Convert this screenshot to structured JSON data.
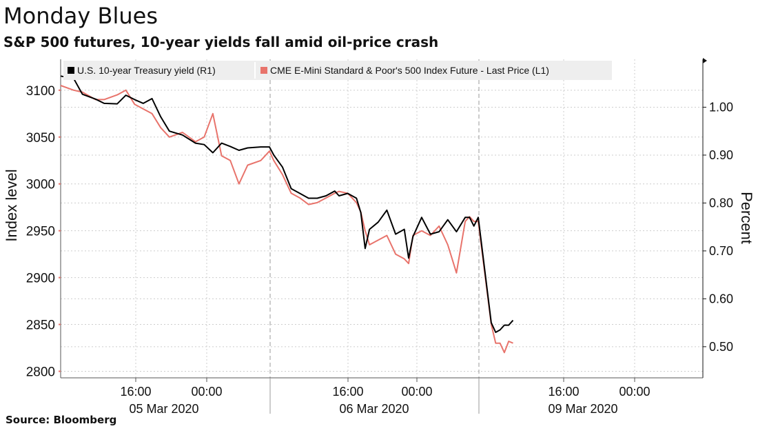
{
  "header": {
    "title": "Monday Blues",
    "subtitle": "S&P 500 futures, 10-year yields fall amid oil-price crash"
  },
  "footer": {
    "source": "Source: Bloomberg"
  },
  "colors": {
    "yield_line": "#000000",
    "spx_line": "#e8736b",
    "grid": "#cccccc",
    "legend_bg": "#eeeeee"
  },
  "chart_data": {
    "type": "line",
    "ylabel_left": "Index level",
    "ylabel_right": "Percent",
    "left_axis": {
      "min": 2793,
      "max": 3133,
      "ticks": [
        3100,
        3050,
        3000,
        2950,
        2900,
        2850,
        2800
      ]
    },
    "right_axis": {
      "min": 0.435,
      "max": 1.1,
      "ticks": [
        "1.00",
        "0.90",
        "0.80",
        "0.70",
        "0.60",
        "0.50"
      ]
    },
    "x_axis": {
      "time_ticks": [
        "16:00",
        "00:00",
        "16:00",
        "00:00",
        "16:00",
        "00:00"
      ],
      "date_labels": [
        "05 Mar 2020",
        "06 Mar 2020",
        "09 Mar 2020"
      ]
    },
    "grid": true,
    "legend_position": "top-left",
    "series": [
      {
        "name": "U.S. 10-year Treasury yield (R1)",
        "axis": "right",
        "points": [
          [
            "05 Mar 2020 08:00",
            1.065
          ],
          [
            "05 Mar 2020 09:30",
            1.06
          ],
          [
            "05 Mar 2020 10:30",
            1.027
          ],
          [
            "05 Mar 2020 12:00",
            1.017
          ],
          [
            "05 Mar 2020 13:00",
            1.008
          ],
          [
            "05 Mar 2020 14:30",
            1.007
          ],
          [
            "05 Mar 2020 15:30",
            1.025
          ],
          [
            "05 Mar 2020 16:30",
            1.016
          ],
          [
            "05 Mar 2020 17:30",
            1.008
          ],
          [
            "05 Mar 2020 18:30",
            1.018
          ],
          [
            "05 Mar 2020 19:30",
            0.98
          ],
          [
            "05 Mar 2020 20:30",
            0.95
          ],
          [
            "05 Mar 2020 22:00",
            0.942
          ],
          [
            "05 Mar 2020 23:30",
            0.925
          ],
          [
            "06 Mar 2020 00:30",
            0.922
          ],
          [
            "06 Mar 2020 01:30",
            0.905
          ],
          [
            "06 Mar 2020 02:30",
            0.925
          ],
          [
            "06 Mar 2020 03:30",
            0.918
          ],
          [
            "06 Mar 2020 04:30",
            0.91
          ],
          [
            "06 Mar 2020 05:30",
            0.915
          ],
          [
            "06 Mar 2020 07:00",
            0.917
          ],
          [
            "06 Mar 2020 08:00",
            0.917
          ],
          [
            "06 Mar 2020 08:30",
            0.9
          ],
          [
            "06 Mar 2020 09:30",
            0.875
          ],
          [
            "06 Mar 2020 10:30",
            0.83
          ],
          [
            "06 Mar 2020 11:30",
            0.82
          ],
          [
            "06 Mar 2020 12:30",
            0.81
          ],
          [
            "06 Mar 2020 13:30",
            0.81
          ],
          [
            "06 Mar 2020 14:30",
            0.815
          ],
          [
            "06 Mar 2020 15:30",
            0.825
          ],
          [
            "06 Mar 2020 16:00",
            0.815
          ],
          [
            "06 Mar 2020 17:00",
            0.82
          ],
          [
            "06 Mar 2020 18:00",
            0.81
          ],
          [
            "06 Mar 2020 18:30",
            0.78
          ],
          [
            "06 Mar 2020 19:00",
            0.705
          ],
          [
            "06 Mar 2020 19:30",
            0.745
          ],
          [
            "06 Mar 2020 20:30",
            0.76
          ],
          [
            "06 Mar 2020 21:30",
            0.785
          ],
          [
            "06 Mar 2020 22:30",
            0.735
          ],
          [
            "06 Mar 2020 23:30",
            0.745
          ],
          [
            "07 Mar 2020 00:00",
            0.685
          ],
          [
            "07 Mar 2020 00:30",
            0.73
          ],
          [
            "07 Mar 2020 01:30",
            0.77
          ],
          [
            "07 Mar 2020 02:30",
            0.735
          ],
          [
            "07 Mar 2020 03:30",
            0.74
          ],
          [
            "07 Mar 2020 04:30",
            0.765
          ],
          [
            "07 Mar 2020 05:30",
            0.74
          ],
          [
            "07 Mar 2020 06:30",
            0.77
          ],
          [
            "07 Mar 2020 07:00",
            0.77
          ],
          [
            "07 Mar 2020 07:30",
            0.752
          ],
          [
            "07 Mar 2020 08:00",
            0.77
          ],
          [
            "07 Mar 2020 09:30",
            0.55
          ],
          [
            "07 Mar 2020 10:00",
            0.53
          ],
          [
            "07 Mar 2020 10:30",
            0.535
          ],
          [
            "07 Mar 2020 11:00",
            0.545
          ],
          [
            "07 Mar 2020 11:30",
            0.545
          ],
          [
            "07 Mar 2020 12:00",
            0.555
          ]
        ]
      },
      {
        "name": "CME E-Mini Standard & Poor's 500 Index Future - Last Price (L1)",
        "axis": "left",
        "points": [
          [
            "05 Mar 2020 08:00",
            3105
          ],
          [
            "05 Mar 2020 09:30",
            3100
          ],
          [
            "05 Mar 2020 10:30",
            3098
          ],
          [
            "05 Mar 2020 12:00",
            3090
          ],
          [
            "05 Mar 2020 13:00",
            3090
          ],
          [
            "05 Mar 2020 14:30",
            3095
          ],
          [
            "05 Mar 2020 15:30",
            3100
          ],
          [
            "05 Mar 2020 16:30",
            3085
          ],
          [
            "05 Mar 2020 17:30",
            3080
          ],
          [
            "05 Mar 2020 18:30",
            3075
          ],
          [
            "05 Mar 2020 19:30",
            3060
          ],
          [
            "05 Mar 2020 20:30",
            3050
          ],
          [
            "05 Mar 2020 22:00",
            3055
          ],
          [
            "05 Mar 2020 23:30",
            3045
          ],
          [
            "06 Mar 2020 00:30",
            3050
          ],
          [
            "06 Mar 2020 01:30",
            3075
          ],
          [
            "06 Mar 2020 02:30",
            3030
          ],
          [
            "06 Mar 2020 03:30",
            3025
          ],
          [
            "06 Mar 2020 04:30",
            3000
          ],
          [
            "06 Mar 2020 05:30",
            3020
          ],
          [
            "06 Mar 2020 07:00",
            3025
          ],
          [
            "06 Mar 2020 08:00",
            3035
          ],
          [
            "06 Mar 2020 08:30",
            3025
          ],
          [
            "06 Mar 2020 09:30",
            3010
          ],
          [
            "06 Mar 2020 10:30",
            2990
          ],
          [
            "06 Mar 2020 11:30",
            2985
          ],
          [
            "06 Mar 2020 12:30",
            2978
          ],
          [
            "06 Mar 2020 13:30",
            2980
          ],
          [
            "06 Mar 2020 14:30",
            2985
          ],
          [
            "06 Mar 2020 15:30",
            2990
          ],
          [
            "06 Mar 2020 16:00",
            2992
          ],
          [
            "06 Mar 2020 17:00",
            2990
          ],
          [
            "06 Mar 2020 18:00",
            2980
          ],
          [
            "06 Mar 2020 18:30",
            2970
          ],
          [
            "06 Mar 2020 19:00",
            2950
          ],
          [
            "06 Mar 2020 19:30",
            2935
          ],
          [
            "06 Mar 2020 20:30",
            2940
          ],
          [
            "06 Mar 2020 21:30",
            2945
          ],
          [
            "06 Mar 2020 22:30",
            2925
          ],
          [
            "06 Mar 2020 23:30",
            2920
          ],
          [
            "07 Mar 2020 00:00",
            2915
          ],
          [
            "07 Mar 2020 00:30",
            2945
          ],
          [
            "07 Mar 2020 01:30",
            2950
          ],
          [
            "07 Mar 2020 02:30",
            2945
          ],
          [
            "07 Mar 2020 03:30",
            2955
          ],
          [
            "07 Mar 2020 04:30",
            2935
          ],
          [
            "07 Mar 2020 05:30",
            2905
          ],
          [
            "07 Mar 2020 06:30",
            2960
          ],
          [
            "07 Mar 2020 07:00",
            2965
          ],
          [
            "07 Mar 2020 07:30",
            2960
          ],
          [
            "07 Mar 2020 08:00",
            2960
          ],
          [
            "07 Mar 2020 09:30",
            2850
          ],
          [
            "07 Mar 2020 10:00",
            2830
          ],
          [
            "07 Mar 2020 10:30",
            2830
          ],
          [
            "07 Mar 2020 11:00",
            2820
          ],
          [
            "07 Mar 2020 11:30",
            2832
          ],
          [
            "07 Mar 2020 12:00",
            2830
          ]
        ]
      }
    ]
  }
}
